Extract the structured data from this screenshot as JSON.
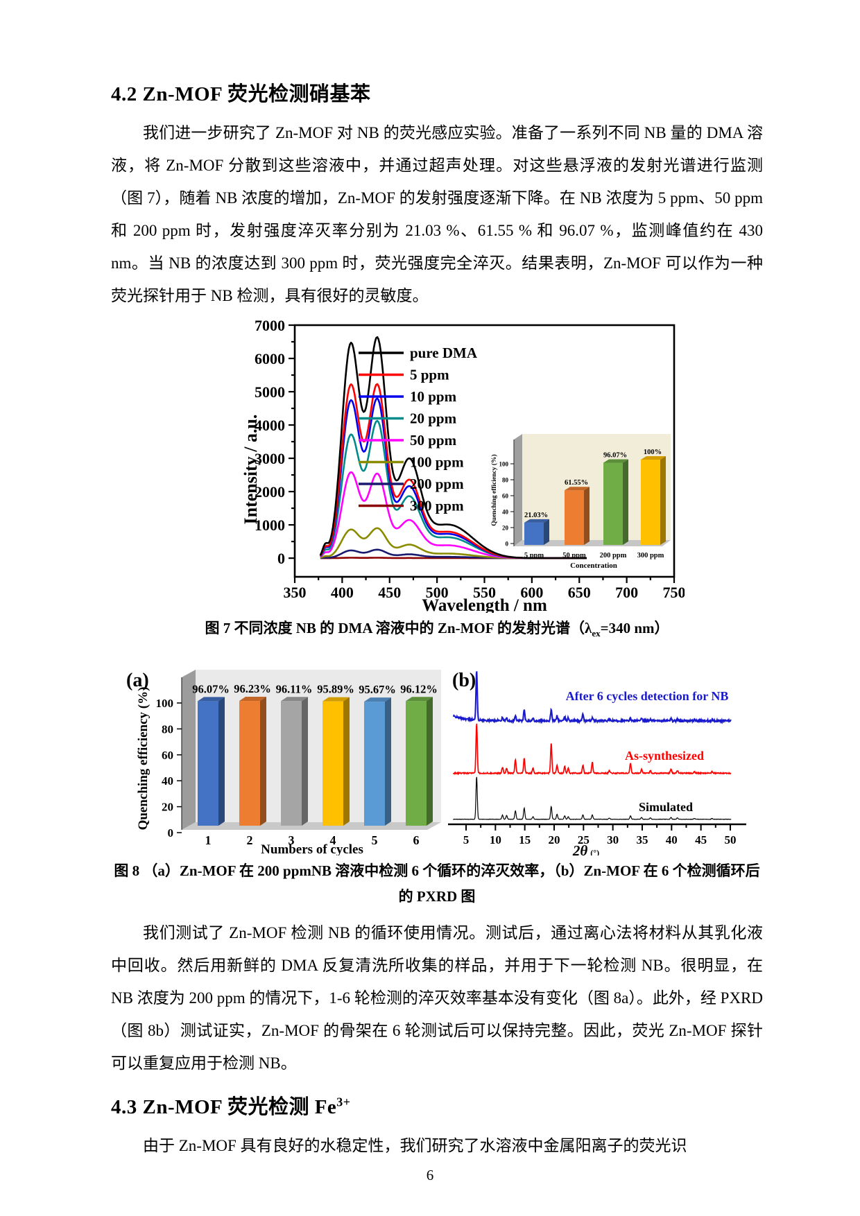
{
  "page": {
    "number": "6"
  },
  "sections": {
    "s42": {
      "heading": "4.2 Zn-MOF 荧光检测硝基苯",
      "paragraph1": "我们进一步研究了 Zn-MOF 对 NB 的荧光感应实验。准备了一系列不同 NB 量的 DMA 溶液，将 Zn-MOF 分散到这些溶液中，并通过超声处理。对这些悬浮液的发射光谱进行监测（图 7），随着 NB 浓度的增加，Zn-MOF 的发射强度逐渐下降。在 NB 浓度为 5 ppm、50 ppm 和 200 ppm 时，发射强度淬灭率分别为 21.03 %、61.55 % 和 96.07 %，监测峰值约在 430 nm。当 NB 的浓度达到 300 ppm 时，荧光强度完全淬灭。结果表明，Zn-MOF 可以作为一种荧光探针用于 NB 检测，具有很好的灵敏度。",
      "paragraph2": "我们测试了 Zn-MOF 检测 NB 的循环使用情况。测试后，通过离心法将材料从其乳化液中回收。然后用新鲜的 DMA 反复清洗所收集的样品，并用于下一轮检测 NB。很明显，在 NB 浓度为 200 ppm 的情况下，1-6 轮检测的淬灭效率基本没有变化（图 8a）。此外，经 PXRD（图 8b）测试证实，Zn-MOF 的骨架在 6 轮测试后可以保持完整。因此，荧光 Zn-MOF 探针可以重复应用于检测 NB。"
    },
    "s43": {
      "heading_pre": "4.3 Zn-MOF 荧光检测 Fe",
      "heading_sup": "3+",
      "paragraph1": "由于 Zn-MOF 具有良好的水稳定性，我们研究了水溶液中金属阳离子的荧光识"
    }
  },
  "figures": {
    "fig7": {
      "caption_pre": "图 7  不同浓度 NB 的 DMA 溶液中的 Zn-MOF 的发射光谱（λ",
      "caption_sub": "ex",
      "caption_post": "=340 nm）"
    },
    "fig8": {
      "caption": "图 8 （a）Zn-MOF 在 200 ppmNB 溶液中检测 6 个循环的淬灭效率，（b）Zn-MOF 在 6 个检测循环后的 PXRD 图"
    }
  },
  "chart_data": [
    {
      "id": "fig7_main",
      "type": "line",
      "title": "",
      "xlabel": "Wavelength / nm",
      "ylabel": "Intensity / a.u.",
      "xlim": [
        350,
        750
      ],
      "ylim": [
        0,
        7000
      ],
      "xticks": [
        350,
        400,
        450,
        500,
        550,
        600,
        650,
        700,
        750
      ],
      "yticks": [
        0,
        1000,
        2000,
        3000,
        4000,
        5000,
        6000,
        7000
      ],
      "legend_position": "upper right inside",
      "grid": false,
      "peak_wavelengths_nm": [
        409,
        437
      ],
      "monitored_peak_nm": 430,
      "series": [
        {
          "name": "pure DMA",
          "color": "#000000",
          "peak_intensities": [
            6380,
            6480
          ]
        },
        {
          "name": "5 ppm",
          "color": "#ff0000",
          "peak_intensities": [
            5150,
            5100
          ]
        },
        {
          "name": "10 ppm",
          "color": "#0000ee",
          "peak_intensities": [
            4680,
            4680
          ]
        },
        {
          "name": "20 ppm",
          "color": "#008b8b",
          "peak_intensities": [
            3660,
            4030
          ]
        },
        {
          "name": "50 ppm",
          "color": "#ff00ff",
          "peak_intensities": [
            2550,
            2480
          ]
        },
        {
          "name": "100 ppm",
          "color": "#8b8b00",
          "peak_intensities": [
            850,
            880
          ]
        },
        {
          "name": "200 ppm",
          "color": "#191970",
          "peak_intensities": [
            230,
            250
          ]
        },
        {
          "name": "300 ppm",
          "color": "#8b0000",
          "peak_intensities": [
            12,
            12
          ]
        }
      ]
    },
    {
      "id": "fig7_inset",
      "type": "bar",
      "categories": [
        "5 ppm",
        "50 ppm",
        "200 ppm",
        "300 ppm"
      ],
      "values": [
        21.03,
        61.55,
        96.07,
        100
      ],
      "labels": [
        "21.03%",
        "61.55%",
        "96.07%",
        "100%"
      ],
      "colors": [
        "#4472c4",
        "#ed7d31",
        "#70ad47",
        "#ffc000"
      ],
      "xlabel": "Concentration",
      "ylabel": "Quenching efficiency (%)",
      "ylim": [
        0,
        100
      ],
      "yticks": [
        0,
        20,
        40,
        60,
        80,
        100
      ]
    },
    {
      "id": "fig8a",
      "type": "bar",
      "panel_label": "(a)",
      "categories": [
        "1",
        "2",
        "3",
        "4",
        "5",
        "6"
      ],
      "values": [
        96.07,
        96.23,
        96.11,
        95.89,
        95.67,
        96.12
      ],
      "labels": [
        "96.07%",
        "96.23%",
        "96.11%",
        "95.89%",
        "95.67%",
        "96.12%"
      ],
      "colors": [
        "#4472c4",
        "#ed7d31",
        "#a5a5a5",
        "#ffc000",
        "#5b9bd5",
        "#70ad47"
      ],
      "xlabel": "Numbers of cycles",
      "ylabel": "Quenching efficiency (%)",
      "ylim": [
        0,
        100
      ],
      "yticks": [
        0,
        20,
        40,
        60,
        80,
        100
      ]
    },
    {
      "id": "fig8b",
      "type": "line",
      "panel_label": "(b)",
      "xlabel_main": "2θ",
      "xlabel_unit": "(°)",
      "xlim": [
        2,
        50
      ],
      "xticks": [
        5,
        10,
        15,
        20,
        25,
        30,
        35,
        40,
        45,
        50
      ],
      "series": [
        {
          "name": "After 6 cycles detection for NB",
          "color": "#1a1acd"
        },
        {
          "name": "As-synthesized",
          "color": "#ff0000"
        },
        {
          "name": "Simulated",
          "color": "#000000"
        }
      ],
      "peaks_columns": [
        "two_theta",
        "simulated",
        "as_synthesized",
        "after_6_cycles"
      ],
      "peaks": [
        [
          6.8,
          1.0,
          1.0,
          1.0
        ],
        [
          11.2,
          0.1,
          0.12,
          0.06
        ],
        [
          11.9,
          0.09,
          0.1,
          0.05
        ],
        [
          13.4,
          0.2,
          0.28,
          0.1
        ],
        [
          14.9,
          0.26,
          0.3,
          0.22
        ],
        [
          16.4,
          0.06,
          0.1,
          0.05
        ],
        [
          19.5,
          0.3,
          0.6,
          0.22
        ],
        [
          20.5,
          0.12,
          0.16,
          0.1
        ],
        [
          21.8,
          0.08,
          0.14,
          0.08
        ],
        [
          22.4,
          0.06,
          0.1,
          0.06
        ],
        [
          24.9,
          0.1,
          0.16,
          0.14
        ],
        [
          26.5,
          0.1,
          0.22,
          0.06
        ],
        [
          29.4,
          0.03,
          0.06,
          0.03
        ],
        [
          33.0,
          0.08,
          0.2,
          0.05
        ],
        [
          34.9,
          0.04,
          0.08,
          0.04
        ],
        [
          36.4,
          0.03,
          0.05,
          0.03
        ],
        [
          39.9,
          0.04,
          0.08,
          0.05
        ],
        [
          41.0,
          0.03,
          0.05,
          0.03
        ],
        [
          43.9,
          0.02,
          0.03,
          0.02
        ],
        [
          46.9,
          0.02,
          0.03,
          0.02
        ]
      ]
    }
  ]
}
